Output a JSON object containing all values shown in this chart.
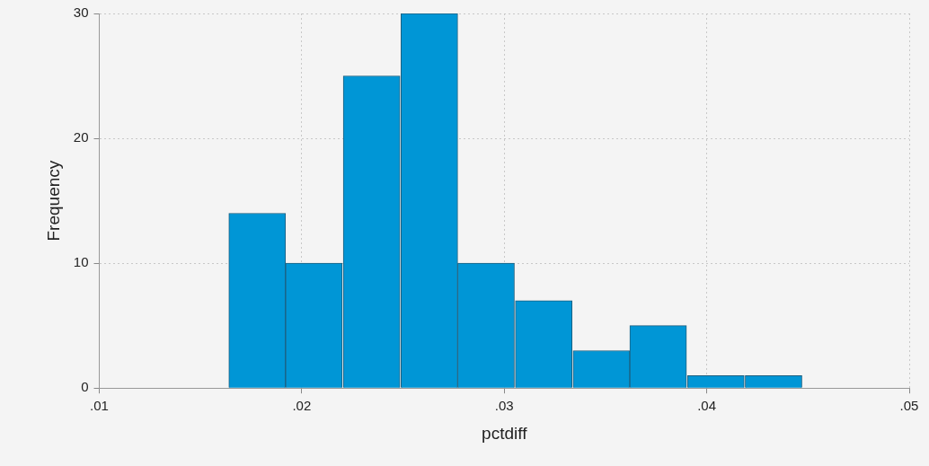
{
  "chart_data": {
    "type": "histogram",
    "xlabel": "pctdiff",
    "ylabel": "Frequency",
    "bins": [
      0.0164,
      0.0192,
      0.022,
      0.0249,
      0.0277,
      0.0305,
      0.0334,
      0.0362,
      0.039,
      0.0419,
      0.0447
    ],
    "values": [
      14,
      10,
      25,
      30,
      10,
      7,
      3,
      5,
      1,
      1
    ],
    "color": "#0096d6",
    "xlim": [
      0.01,
      0.05
    ],
    "xticks": [
      {
        "value": 0.01,
        "label": ".01"
      },
      {
        "value": 0.02,
        "label": ".02"
      },
      {
        "value": 0.03,
        "label": ".03"
      },
      {
        "value": 0.04,
        "label": ".04"
      },
      {
        "value": 0.05,
        "label": ".05"
      }
    ],
    "ylim": [
      0,
      30
    ],
    "yticks": [
      0,
      10,
      20,
      30
    ],
    "grid": true,
    "legend": false
  }
}
